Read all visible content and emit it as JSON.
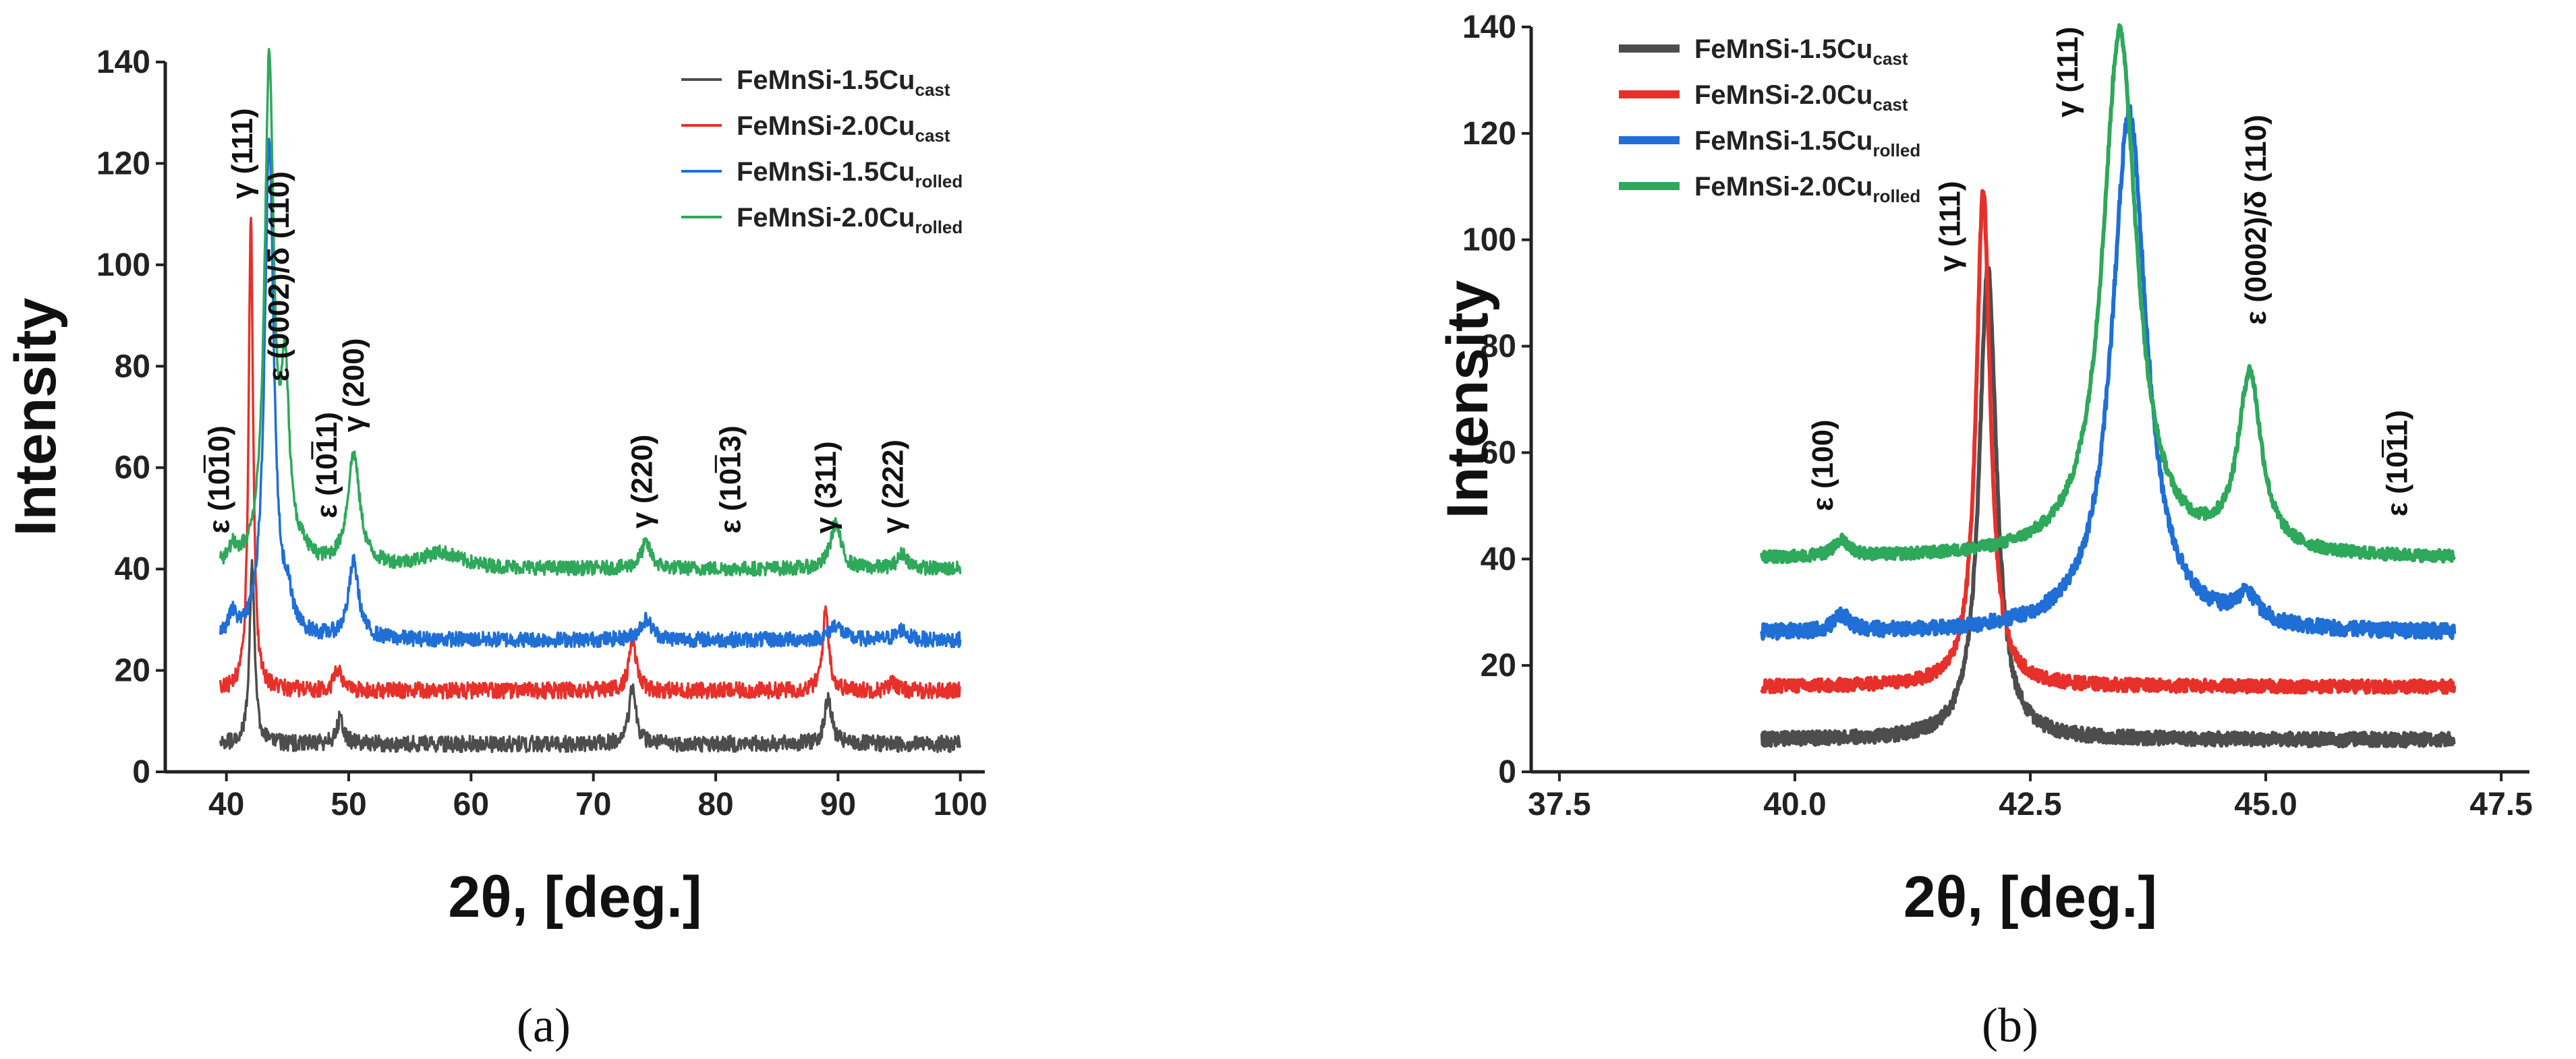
{
  "colors": {
    "FeMnSi-1.5Cu cast": "#4d4d4d",
    "FeMnSi-2.0Cu cast": "#e8302a",
    "FeMnSi-1.5Cu rolled": "#1f6fd6",
    "FeMnSi-2.0Cu rolled": "#2ea85a"
  },
  "chart_data": [
    {
      "id": "a",
      "type": "line",
      "panel_label": "(a)",
      "xlabel": "2θ, [deg.]",
      "ylabel": "Intensity",
      "xlim": [
        35,
        102
      ],
      "ylim": [
        0,
        140
      ],
      "xticks": [
        40,
        50,
        60,
        70,
        80,
        90,
        100
      ],
      "yticks": [
        0,
        20,
        40,
        60,
        80,
        100,
        120,
        140
      ],
      "legend_position": "top-right",
      "x_range": [
        39.5,
        100
      ],
      "series": [
        {
          "name": "FeMnSi-1.5Cu",
          "subscript": "cast",
          "color": "#4d4d4d",
          "baseline": 5.5,
          "noise": 1.6,
          "peaks": [
            [
              42.1,
              35,
              0.25
            ],
            [
              49.3,
              5,
              0.35
            ],
            [
              73.2,
              11,
              0.35
            ],
            [
              89.2,
              9,
              0.35
            ]
          ]
        },
        {
          "name": "FeMnSi-2.0Cu",
          "subscript": "cast",
          "color": "#e8302a",
          "baseline": 16,
          "noise": 1.6,
          "peaks": [
            [
              42.0,
              94,
              0.22
            ],
            [
              49.1,
              4,
              0.35
            ],
            [
              73.2,
              10,
              0.35
            ],
            [
              89.0,
              16,
              0.3
            ],
            [
              94.5,
              2,
              0.3
            ]
          ]
        },
        {
          "name": "FeMnSi-1.5Cu",
          "subscript": "rolled",
          "color": "#1f6fd6",
          "baseline": 26,
          "noise": 1.5,
          "peaks": [
            [
              40.5,
              4,
              0.4
            ],
            [
              43.5,
              98,
              0.45
            ],
            [
              45.0,
              6,
              0.4
            ],
            [
              50.4,
              15,
              0.5
            ],
            [
              74.3,
              4,
              0.6
            ],
            [
              89.8,
              3,
              0.6
            ],
            [
              95.2,
              2,
              0.5
            ]
          ]
        },
        {
          "name": "FeMnSi-2.0Cu",
          "subscript": "rolled",
          "color": "#2ea85a",
          "baseline": 40,
          "noise": 1.4,
          "peaks": [
            [
              40.5,
              3,
              0.4
            ],
            [
              43.5,
              99,
              0.45
            ],
            [
              44.8,
              34,
              0.4
            ],
            [
              46.3,
              2,
              0.5
            ],
            [
              50.4,
              22,
              0.6
            ],
            [
              57.5,
              3,
              2.0
            ],
            [
              74.3,
              5,
              0.5
            ],
            [
              89.8,
              9,
              0.5
            ],
            [
              95.3,
              3,
              0.5
            ]
          ]
        }
      ],
      "annotations": [
        {
          "text": "ε (1010)",
          "x": 40.2,
          "y": 47,
          "bar": true
        },
        {
          "text": "γ (111)",
          "x": 42.1,
          "y": 113,
          "bar": false
        },
        {
          "text": "ε (0002)/δ (110)",
          "x": 45.1,
          "y": 77,
          "bar": false
        },
        {
          "text": "ε (1011)",
          "x": 49.0,
          "y": 50,
          "bar": true
        },
        {
          "text": "γ (200)",
          "x": 51.2,
          "y": 67,
          "bar": false
        },
        {
          "text": "γ (220)",
          "x": 74.8,
          "y": 48,
          "bar": false
        },
        {
          "text": "ε (1013)",
          "x": 82.0,
          "y": 47,
          "bar": true
        },
        {
          "text": "γ (311)",
          "x": 89.8,
          "y": 47,
          "bar": false
        },
        {
          "text": "γ (222)",
          "x": 95.3,
          "y": 47,
          "bar": false
        }
      ]
    },
    {
      "id": "b",
      "type": "line",
      "panel_label": "(b)",
      "xlabel": "2θ, [deg.]",
      "ylabel": "Intensity",
      "xlim": [
        37.2,
        47.8
      ],
      "ylim": [
        0,
        140
      ],
      "xticks": [
        37.5,
        40.0,
        42.5,
        45.0,
        47.5
      ],
      "yticks": [
        0,
        20,
        40,
        60,
        80,
        100,
        120,
        140
      ],
      "legend_position": "top-left",
      "x_range": [
        39.65,
        47.0
      ],
      "series": [
        {
          "name": "FeMnSi-1.5Cu",
          "subscript": "cast",
          "color": "#4d4d4d",
          "baseline": 6,
          "noise": 1.3,
          "peaks": [
            [
              42.05,
              89,
              0.11
            ]
          ]
        },
        {
          "name": "FeMnSi-2.0Cu",
          "subscript": "cast",
          "color": "#e8302a",
          "baseline": 16,
          "noise": 1.2,
          "peaks": [
            [
              42.0,
              93,
              0.09
            ]
          ]
        },
        {
          "name": "FeMnSi-1.5Cu",
          "subscript": "rolled",
          "color": "#1f6fd6",
          "baseline": 26,
          "noise": 1.4,
          "peaks": [
            [
              40.5,
              3,
              0.1
            ],
            [
              43.55,
              98,
              0.22
            ],
            [
              44.8,
              5,
              0.15
            ]
          ]
        },
        {
          "name": "FeMnSi-2.0Cu",
          "subscript": "rolled",
          "color": "#2ea85a",
          "baseline": 40,
          "noise": 1.1,
          "peaks": [
            [
              40.5,
              3,
              0.1
            ],
            [
              43.45,
              99,
              0.22
            ],
            [
              44.83,
              33,
              0.15
            ]
          ]
        }
      ],
      "annotations": [
        {
          "text": "ε (100)",
          "x": 40.4,
          "y": 49,
          "bar": false
        },
        {
          "text": "γ (111)",
          "x": 41.75,
          "y": 94,
          "bar": false
        },
        {
          "text": "γ (111)",
          "x": 43.0,
          "y": 123,
          "bar": false
        },
        {
          "text": "ε (0002)/δ (110)",
          "x": 45.0,
          "y": 84,
          "bar": false
        },
        {
          "text": "ε (1011)",
          "x": 46.5,
          "y": 48,
          "bar": true
        }
      ]
    }
  ]
}
